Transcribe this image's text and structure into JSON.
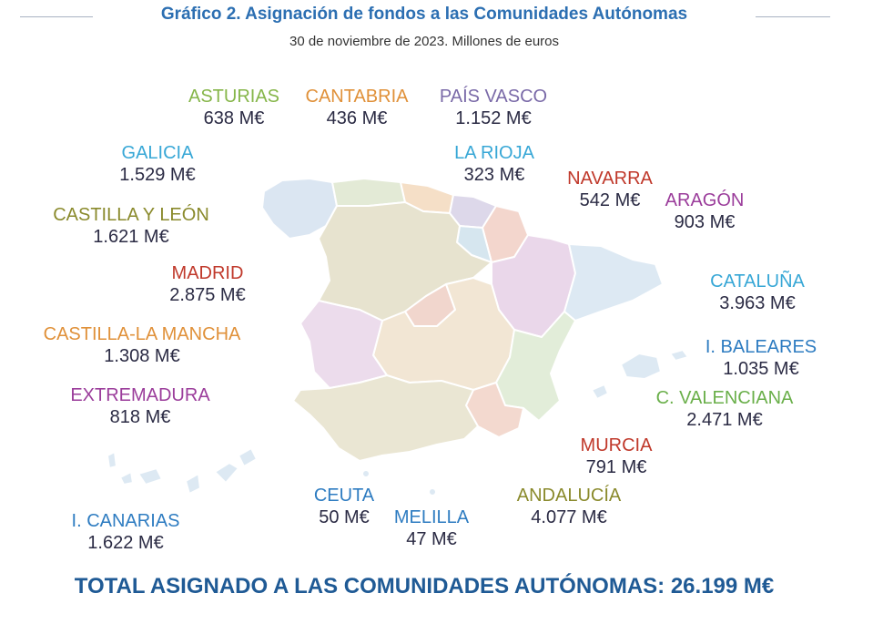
{
  "header": {
    "title": "Gráfico 2. Asignación de fondos a las Comunidades Autónomas",
    "subtitle": "30 de noviembre de 2023. Millones de euros"
  },
  "regions": [
    {
      "id": "asturias",
      "name": "ASTURIAS",
      "value": "638 M€",
      "color": "#86b64a"
    },
    {
      "id": "cantabria",
      "name": "CANTABRIA",
      "value": "436 M€",
      "color": "#e0913a"
    },
    {
      "id": "pais-vasco",
      "name": "PAÍS VASCO",
      "value": "1.152 M€",
      "color": "#7a6aa8"
    },
    {
      "id": "galicia",
      "name": "GALICIA",
      "value": "1.529 M€",
      "color": "#37a7d6"
    },
    {
      "id": "la-rioja",
      "name": "LA RIOJA",
      "value": "323 M€",
      "color": "#37a7d6"
    },
    {
      "id": "navarra",
      "name": "NAVARRA",
      "value": "542 M€",
      "color": "#c0392b"
    },
    {
      "id": "aragon",
      "name": "ARAGÓN",
      "value": "903 M€",
      "color": "#9b3d9b"
    },
    {
      "id": "castilla-y-leon",
      "name": "CASTILLA Y LEÓN",
      "value": "1.621 M€",
      "color": "#8a8a2c"
    },
    {
      "id": "madrid",
      "name": "MADRID",
      "value": "2.875 M€",
      "color": "#c0392b"
    },
    {
      "id": "cataluna",
      "name": "CATALUÑA",
      "value": "3.963 M€",
      "color": "#37a7d6"
    },
    {
      "id": "castilla-la-mancha",
      "name": "CASTILLA-LA MANCHA",
      "value": "1.308 M€",
      "color": "#e0913a"
    },
    {
      "id": "i-baleares",
      "name": "I. BALEARES",
      "value": "1.035 M€",
      "color": "#2e7cc1"
    },
    {
      "id": "extremadura",
      "name": "EXTREMADURA",
      "value": "818 M€",
      "color": "#9b3d9b"
    },
    {
      "id": "c-valenciana",
      "name": "C. VALENCIANA",
      "value": "2.471 M€",
      "color": "#6aaf4a"
    },
    {
      "id": "murcia",
      "name": "MURCIA",
      "value": "791 M€",
      "color": "#c0392b"
    },
    {
      "id": "andalucia",
      "name": "ANDALUCÍA",
      "value": "4.077 M€",
      "color": "#8a8a2c"
    },
    {
      "id": "ceuta",
      "name": "CEUTA",
      "value": "50 M€",
      "color": "#2e7cc1"
    },
    {
      "id": "melilla",
      "name": "MELILLA",
      "value": "47 M€",
      "color": "#2e7cc1"
    },
    {
      "id": "i-canarias",
      "name": "I. CANARIAS",
      "value": "1.622 M€",
      "color": "#2e7cc1"
    }
  ],
  "total": "TOTAL ASIGNADO A LAS COMUNIDADES AUTÓNOMAS: 26.199 M€"
}
